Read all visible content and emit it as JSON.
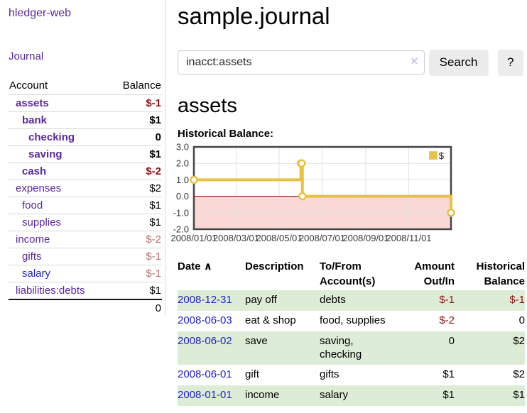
{
  "colors": {
    "link_purple": "#5a2a9a",
    "link_blue": "#2222cc",
    "negative_strong": "#8e1414",
    "negative_muted": "#b5716d",
    "row_green": "#ddecd6",
    "chart_gold": "#e7c13f",
    "chart_negative_fill": "#f9d8d6",
    "chart_zero_line": "#8b0000"
  },
  "app_title": "hledger-web",
  "sidebar": {
    "journal_link": "Journal",
    "accounts_table": {
      "headers": {
        "account": "Account",
        "balance": "Balance"
      },
      "rows": [
        {
          "account": "assets",
          "balance": "$-1",
          "depth": 1,
          "selected": true,
          "balance_style": "neg-strong"
        },
        {
          "account": "bank",
          "balance": "$1",
          "depth": 2,
          "selected": true,
          "balance_style": ""
        },
        {
          "account": "checking",
          "balance": "0",
          "depth": 3,
          "selected": true,
          "balance_style": ""
        },
        {
          "account": "saving",
          "balance": "$1",
          "depth": 3,
          "selected": true,
          "balance_style": ""
        },
        {
          "account": "cash",
          "balance": "$-2",
          "depth": 2,
          "selected": true,
          "balance_style": "neg-strong"
        },
        {
          "account": "expenses",
          "balance": "$2",
          "depth": 1,
          "selected": false,
          "balance_style": ""
        },
        {
          "account": "food",
          "balance": "$1",
          "depth": 2,
          "selected": false,
          "balance_style": ""
        },
        {
          "account": "supplies",
          "balance": "$1",
          "depth": 2,
          "selected": false,
          "balance_style": ""
        },
        {
          "account": "income",
          "balance": "$-2",
          "depth": 1,
          "selected": false,
          "balance_style": "neg-muted"
        },
        {
          "account": "gifts",
          "balance": "$-1",
          "depth": 2,
          "selected": false,
          "balance_style": "neg-muted"
        },
        {
          "account": "salary",
          "balance": "$-1",
          "depth": 2,
          "selected": false,
          "balance_style": "neg-muted",
          "link_style": "blue"
        },
        {
          "account": "liabilities:debts",
          "balance": "$1",
          "depth": 1,
          "selected": false,
          "balance_style": ""
        }
      ],
      "total": "0"
    }
  },
  "main": {
    "title": "sample.journal",
    "search": {
      "value": "inacct:assets",
      "clear_label": "×",
      "search_button": "Search",
      "help_button": "?"
    },
    "account_heading": "assets",
    "chart_title": "Historical Balance:"
  },
  "chart_data": {
    "type": "line",
    "step": true,
    "title": "Historical Balance",
    "legend": {
      "label": "$",
      "position": "top-right"
    },
    "x_range": [
      "2008-01-01",
      "2008-12-31"
    ],
    "x_ticks": [
      {
        "date": "2008-01-01",
        "label": "2008/01/01"
      },
      {
        "date": "2008-03-01",
        "label": "2008/03/01"
      },
      {
        "date": "2008-05-01",
        "label": "2008/05/01"
      },
      {
        "date": "2008-07-01",
        "label": "2008/07/01"
      },
      {
        "date": "2008-09-01",
        "label": "2008/09/01"
      },
      {
        "date": "2008-11-01",
        "label": "2008/11/01"
      }
    ],
    "y_ticks": [
      3,
      2,
      1,
      0,
      -1,
      -2
    ],
    "ylim": [
      -2,
      3
    ],
    "grid": true,
    "series": [
      {
        "name": "$",
        "points": [
          {
            "date": "2008-01-01",
            "value": 1
          },
          {
            "date": "2008-06-01",
            "value": 2
          },
          {
            "date": "2008-06-02",
            "value": 2
          },
          {
            "date": "2008-06-03",
            "value": 0
          },
          {
            "date": "2008-12-31",
            "value": -1
          }
        ]
      }
    ]
  },
  "transactions": {
    "headers": {
      "date": "Date",
      "sort_indicator": "∧",
      "description": "Description",
      "accounts": "To/From Account(s)",
      "amount": "Amount Out/In",
      "balance": "Historical Balance"
    },
    "rows": [
      {
        "date": "2008-12-31",
        "description": "pay off",
        "accounts": "debts",
        "amount": "$-1",
        "amount_negative": true,
        "balance": "$-1",
        "balance_negative": true,
        "highlighted": true
      },
      {
        "date": "2008-06-03",
        "description": "eat & shop",
        "accounts": "food, supplies",
        "amount": "$-2",
        "amount_negative": true,
        "balance": "0",
        "balance_negative": false,
        "highlighted": false
      },
      {
        "date": "2008-06-02",
        "description": "save",
        "accounts": "saving,\nchecking",
        "amount": "0",
        "amount_negative": false,
        "balance": "$2",
        "balance_negative": false,
        "highlighted": true
      },
      {
        "date": "2008-06-01",
        "description": "gift",
        "accounts": "gifts",
        "amount": "$1",
        "amount_negative": false,
        "balance": "$2",
        "balance_negative": false,
        "highlighted": false
      },
      {
        "date": "2008-01-01",
        "description": "income",
        "accounts": "salary",
        "amount": "$1",
        "amount_negative": false,
        "balance": "$1",
        "balance_negative": false,
        "highlighted": true
      }
    ]
  }
}
